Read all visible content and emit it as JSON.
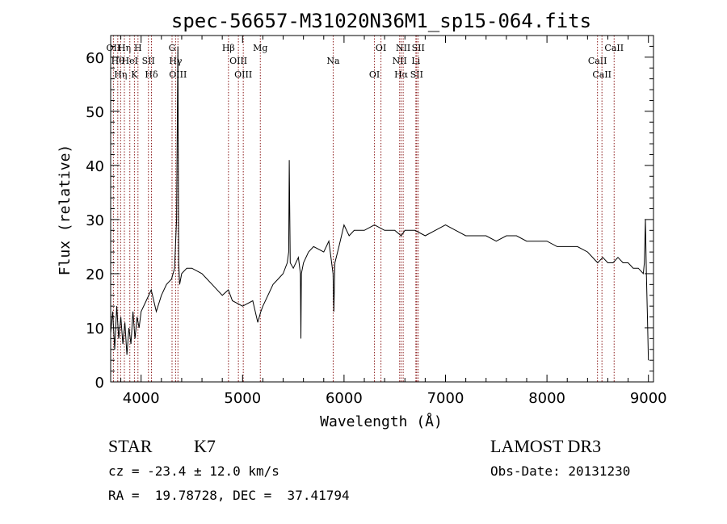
{
  "chart_data": {
    "type": "line",
    "title": "spec-56657-M31020N36M1_sp15-064.fits",
    "xlabel": "Wavelength (Å)",
    "ylabel": "Flux (relative)",
    "xlim": [
      3700,
      9050
    ],
    "ylim": [
      0,
      64
    ],
    "xticks": [
      4000,
      5000,
      6000,
      7000,
      8000,
      9000
    ],
    "yticks": [
      0,
      10,
      20,
      30,
      40,
      50,
      60
    ],
    "line_color": "#000000",
    "marker_color": "#8b1a1a",
    "series": [
      {
        "x": [
          3700,
          3720,
          3740,
          3760,
          3780,
          3800,
          3820,
          3840,
          3860,
          3880,
          3900,
          3920,
          3940,
          3960,
          3980,
          4000,
          4050,
          4100,
          4150,
          4200,
          4250,
          4300,
          4330,
          4350,
          4362,
          4366,
          4370,
          4380,
          4400,
          4450,
          4500,
          4600,
          4700,
          4800,
          4860,
          4900,
          5000,
          5100,
          5150,
          5180,
          5200,
          5250,
          5300,
          5350,
          5400,
          5440,
          5455,
          5460,
          5470,
          5500,
          5550,
          5570,
          5575,
          5580,
          5600,
          5650,
          5700,
          5800,
          5850,
          5892,
          5900,
          5910,
          5950,
          6000,
          6050,
          6100,
          6200,
          6300,
          6400,
          6500,
          6563,
          6600,
          6700,
          6800,
          6900,
          7000,
          7100,
          7200,
          7300,
          7400,
          7500,
          7600,
          7700,
          7800,
          7900,
          8000,
          8100,
          8200,
          8300,
          8400,
          8500,
          8550,
          8600,
          8650,
          8700,
          8750,
          8800,
          8850,
          8900,
          8950,
          8960,
          8970,
          8980,
          8990,
          9000
        ],
        "y": [
          9,
          13,
          6,
          14,
          8,
          12,
          7,
          11,
          5,
          10,
          7,
          13,
          8,
          12,
          10,
          13,
          15,
          17,
          13,
          16,
          18,
          19,
          21,
          30,
          62,
          42,
          22,
          18,
          20,
          21,
          21,
          20,
          18,
          16,
          17,
          15,
          14,
          15,
          11,
          13,
          14,
          16,
          18,
          19,
          20,
          22,
          24,
          41,
          22,
          21,
          23,
          20,
          8,
          20,
          22,
          24,
          25,
          24,
          26,
          20,
          13,
          22,
          25,
          29,
          27,
          28,
          28,
          29,
          28,
          28,
          27,
          28,
          28,
          27,
          28,
          29,
          28,
          27,
          27,
          27,
          26,
          27,
          27,
          26,
          26,
          26,
          25,
          25,
          25,
          24,
          22,
          23,
          22,
          22,
          23,
          22,
          22,
          21,
          21,
          20,
          22,
          30,
          20,
          12,
          4
        ]
      }
    ],
    "lines": [
      {
        "x": 3727,
        "label": "OII"
      },
      {
        "x": 3770,
        "label": "Hθ"
      },
      {
        "x": 3798,
        "label": "Hη"
      },
      {
        "x": 3835,
        "label": "Hη"
      },
      {
        "x": 3889,
        "label": "HeI"
      },
      {
        "x": 3934,
        "label": "K"
      },
      {
        "x": 3969,
        "label": "H"
      },
      {
        "x": 4072,
        "label": "SII"
      },
      {
        "x": 4102,
        "label": "Hδ"
      },
      {
        "x": 4305,
        "label": "G"
      },
      {
        "x": 4340,
        "label": "Hγ"
      },
      {
        "x": 4363,
        "label": "OIII"
      },
      {
        "x": 4861,
        "label": "Hβ"
      },
      {
        "x": 4959,
        "label": "OIII"
      },
      {
        "x": 5007,
        "label": "OIII"
      },
      {
        "x": 5175,
        "label": "Mg"
      },
      {
        "x": 5893,
        "label": "Na"
      },
      {
        "x": 6300,
        "label": "OI"
      },
      {
        "x": 6364,
        "label": "OI"
      },
      {
        "x": 6548,
        "label": "NII"
      },
      {
        "x": 6563,
        "label": "Hα"
      },
      {
        "x": 6583,
        "label": "NII"
      },
      {
        "x": 6708,
        "label": "Li"
      },
      {
        "x": 6716,
        "label": "SII"
      },
      {
        "x": 6731,
        "label": "SII"
      },
      {
        "x": 8498,
        "label": "CaII"
      },
      {
        "x": 8542,
        "label": "CaII"
      },
      {
        "x": 8662,
        "label": "CaII"
      }
    ]
  },
  "info": {
    "class": "STAR",
    "subclass": "K7",
    "survey": "LAMOST DR3",
    "cz": "cz = -23.4 ± 12.0 km/s",
    "obs_date": "Obs-Date: 20131230",
    "radec": "RA =  19.78728, DEC =  37.41794"
  }
}
